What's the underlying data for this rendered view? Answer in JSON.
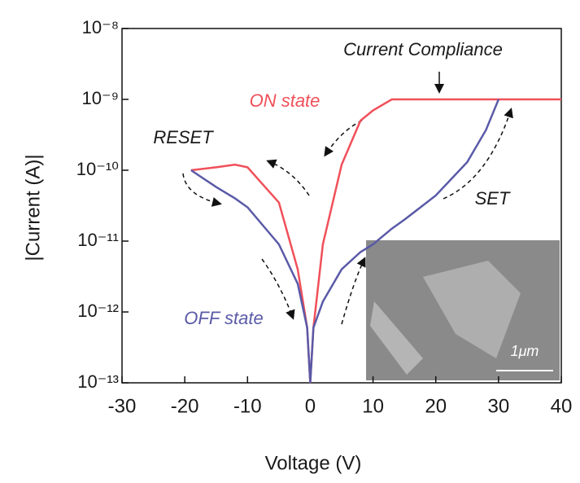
{
  "chart_data": {
    "type": "line",
    "xlabel": "Voltage (V)",
    "ylabel": "|Current (A)|",
    "x": [
      -19,
      -15,
      -12,
      -10,
      -5,
      -2,
      -0.5,
      0,
      0.5,
      2,
      5,
      8,
      10,
      13,
      15,
      20,
      25,
      28,
      30,
      35,
      40
    ],
    "series": [
      {
        "name": "ON state",
        "color": "#f0505a",
        "values": [
          1e-10,
          1.1e-10,
          1.2e-10,
          1.1e-10,
          3.5e-11,
          4e-12,
          6e-13,
          1e-13,
          6e-13,
          9e-12,
          1.2e-10,
          5e-10,
          7e-10,
          1e-09,
          1e-09,
          1e-09,
          1e-09,
          1e-09,
          1e-09,
          1e-09,
          1e-09
        ]
      },
      {
        "name": "OFF state",
        "color": "#5a5aa8",
        "values": [
          1e-10,
          5.8e-11,
          4e-11,
          3e-11,
          9e-12,
          2.5e-12,
          6e-13,
          1e-13,
          6e-13,
          1.4e-12,
          4e-12,
          7e-12,
          9e-12,
          1.5e-11,
          2e-11,
          4.4e-11,
          1.3e-10,
          3.7e-10,
          1e-09,
          null,
          null
        ]
      }
    ],
    "xlim": [
      -30,
      40
    ],
    "xticks": [
      -30,
      -20,
      -10,
      0,
      10,
      20,
      30,
      40
    ],
    "ylim": [
      1e-13,
      1e-08
    ],
    "log_y": true,
    "yticks": [
      {
        "value": 1e-13,
        "label": "10⁻¹³"
      },
      {
        "value": 1e-12,
        "label": "10⁻¹²"
      },
      {
        "value": 1e-11,
        "label": "10⁻¹¹"
      },
      {
        "value": 1e-10,
        "label": "10⁻¹⁰"
      },
      {
        "value": 1e-09,
        "label": "10⁻⁹"
      },
      {
        "value": 1e-08,
        "label": "10⁻⁸"
      }
    ],
    "annotations": [
      "Current Compliance",
      "RESET",
      "SET",
      "1μm"
    ]
  }
}
